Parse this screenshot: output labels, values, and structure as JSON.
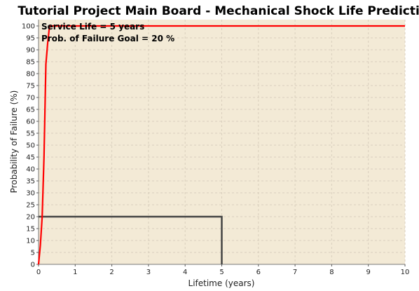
{
  "chart_data": {
    "type": "line",
    "title": "Tutorial Project Main Board - Mechanical Shock Life Prediction",
    "xlabel": "Lifetime (years)",
    "ylabel": "Probability of Failure (%)",
    "xlim": [
      0,
      10
    ],
    "ylim": [
      0,
      100
    ],
    "x_ticks": [
      0,
      1,
      2,
      3,
      4,
      5,
      6,
      7,
      8,
      9,
      10
    ],
    "y_ticks": [
      0,
      5,
      10,
      15,
      20,
      25,
      30,
      35,
      40,
      45,
      50,
      55,
      60,
      65,
      70,
      75,
      80,
      85,
      90,
      95,
      100
    ],
    "grid": true,
    "annotations": [
      "Service Life = 5 years",
      "Prob. of Failure Goal = 20 %"
    ],
    "series": [
      {
        "color": "#ff0000",
        "x": [
          0,
          0.05,
          0.1,
          0.15,
          0.2,
          0.25,
          0.3,
          1,
          2,
          3,
          4,
          5,
          6,
          7,
          8,
          9,
          10
        ],
        "y": [
          0,
          8,
          20,
          45,
          84,
          93,
          100,
          100,
          100,
          100,
          100,
          100,
          100,
          100,
          100,
          100,
          100
        ]
      },
      {
        "color": "#444444",
        "x": [
          0,
          5,
          5
        ],
        "y": [
          20,
          20,
          0
        ]
      }
    ],
    "colors": {
      "plot_background": "#f3ead6",
      "grid": "#d9cfbd"
    }
  }
}
